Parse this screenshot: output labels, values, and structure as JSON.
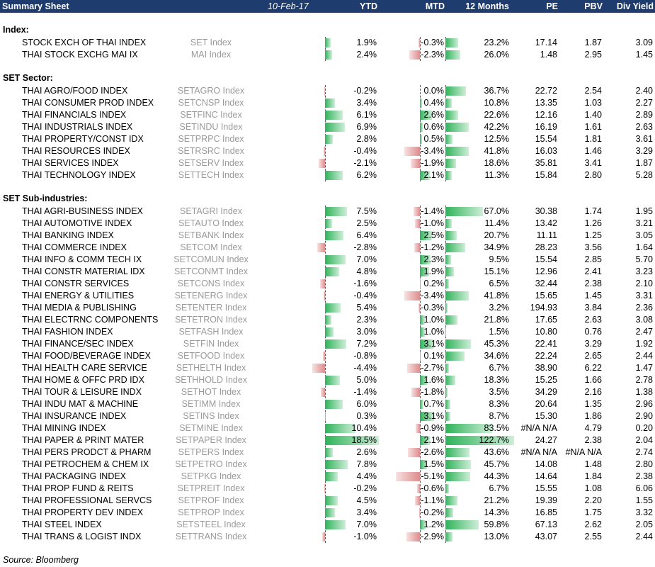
{
  "header": {
    "title": "Summary Sheet",
    "date": "10-Feb-17",
    "col_ytd": "YTD",
    "col_mtd": "MTD",
    "col_12m": "12 Months",
    "col_pe": "PE",
    "col_pbv": "PBV",
    "col_div": "Div Yield"
  },
  "sections": [
    {
      "title": "Index:",
      "rows": [
        {
          "name": "STOCK EXCH OF THAI INDEX",
          "ticker": "SET Index",
          "ytd": "1.9%",
          "mtd": "-0.3%",
          "m12": "23.2%",
          "pe": "17.14",
          "pbv": "1.87",
          "div": "3.09",
          "ytd_v": 1.9,
          "mtd_v": -0.3,
          "m12_v": 23.2
        },
        {
          "name": "THAI STOCK EXCHG MAI IX",
          "ticker": "MAI Index",
          "ytd": "2.4%",
          "mtd": "-2.3%",
          "m12": "26.0%",
          "pe": "1.48",
          "pbv": "2.95",
          "div": "1.45",
          "ytd_v": 2.4,
          "mtd_v": -2.3,
          "m12_v": 26.0
        }
      ]
    },
    {
      "title": "SET Sector:",
      "rows": [
        {
          "name": "THAI AGRO/FOOD INDEX",
          "ticker": "SETAGRO Index",
          "ytd": "-0.2%",
          "mtd": "0.0%",
          "m12": "36.7%",
          "pe": "22.72",
          "pbv": "2.54",
          "div": "2.40",
          "ytd_v": -0.2,
          "mtd_v": 0.0,
          "m12_v": 36.7
        },
        {
          "name": "THAI CONSUMER PROD INDEX",
          "ticker": "SETCNSP Index",
          "ytd": "3.4%",
          "mtd": "0.4%",
          "m12": "10.8%",
          "pe": "13.35",
          "pbv": "1.03",
          "div": "2.27",
          "ytd_v": 3.4,
          "mtd_v": 0.4,
          "m12_v": 10.8
        },
        {
          "name": "THAI FINANCIALS INDEX",
          "ticker": "SETFINC Index",
          "ytd": "6.1%",
          "mtd": "2.6%",
          "m12": "22.6%",
          "pe": "12.16",
          "pbv": "1.40",
          "div": "2.89",
          "ytd_v": 6.1,
          "mtd_v": 2.6,
          "m12_v": 22.6
        },
        {
          "name": "THAI INDUSTRIALS INDEX",
          "ticker": "SETINDU Index",
          "ytd": "6.9%",
          "mtd": "0.6%",
          "m12": "42.2%",
          "pe": "16.19",
          "pbv": "1.61",
          "div": "2.63",
          "ytd_v": 6.9,
          "mtd_v": 0.6,
          "m12_v": 42.2
        },
        {
          "name": "THAI PROPERTY/CONST IDX",
          "ticker": "SETPRPC Index",
          "ytd": "2.8%",
          "mtd": "0.5%",
          "m12": "12.5%",
          "pe": "15.54",
          "pbv": "1.81",
          "div": "3.61",
          "ytd_v": 2.8,
          "mtd_v": 0.5,
          "m12_v": 12.5
        },
        {
          "name": "THAI RESOURCES INDEX",
          "ticker": "SETRSRC Index",
          "ytd": "-0.4%",
          "mtd": "-3.4%",
          "m12": "41.8%",
          "pe": "16.03",
          "pbv": "1.46",
          "div": "3.29",
          "ytd_v": -0.4,
          "mtd_v": -3.4,
          "m12_v": 41.8
        },
        {
          "name": "THAI SERVICES INDEX",
          "ticker": "SETSERV Index",
          "ytd": "-2.1%",
          "mtd": "-1.9%",
          "m12": "18.6%",
          "pe": "35.81",
          "pbv": "3.41",
          "div": "1.87",
          "ytd_v": -2.1,
          "mtd_v": -1.9,
          "m12_v": 18.6
        },
        {
          "name": "THAI TECHNOLOGY INDEX",
          "ticker": "SETTECH Index",
          "ytd": "6.2%",
          "mtd": "2.1%",
          "m12": "11.3%",
          "pe": "15.84",
          "pbv": "2.80",
          "div": "5.28",
          "ytd_v": 6.2,
          "mtd_v": 2.1,
          "m12_v": 11.3
        }
      ]
    },
    {
      "title": "SET Sub-industries:",
      "rows": [
        {
          "name": "THAI AGRI-BUSINESS INDEX",
          "ticker": "SETAGRI Index",
          "ytd": "7.5%",
          "mtd": "-1.4%",
          "m12": "67.0%",
          "pe": "30.38",
          "pbv": "1.74",
          "div": "1.95",
          "ytd_v": 7.5,
          "mtd_v": -1.4,
          "m12_v": 67.0
        },
        {
          "name": "THAI AUTOMOTIVE INDEX",
          "ticker": "SETAUTO Index",
          "ytd": "2.5%",
          "mtd": "-1.0%",
          "m12": "11.4%",
          "pe": "13.42",
          "pbv": "1.26",
          "div": "3.21",
          "ytd_v": 2.5,
          "mtd_v": -1.0,
          "m12_v": 11.4
        },
        {
          "name": "THAI BANKING INDEX",
          "ticker": "SETBANK Index",
          "ytd": "6.4%",
          "mtd": "2.5%",
          "m12": "20.7%",
          "pe": "11.11",
          "pbv": "1.25",
          "div": "3.05",
          "ytd_v": 6.4,
          "mtd_v": 2.5,
          "m12_v": 20.7
        },
        {
          "name": "THAI COMMERCE INDEX",
          "ticker": "SETCOM Index",
          "ytd": "-2.8%",
          "mtd": "-1.2%",
          "m12": "34.9%",
          "pe": "28.23",
          "pbv": "3.56",
          "div": "1.64",
          "ytd_v": -2.8,
          "mtd_v": -1.2,
          "m12_v": 34.9
        },
        {
          "name": "THAI INFO & COMM TECH IX",
          "ticker": "SETCOMUN Index",
          "ytd": "7.0%",
          "mtd": "2.3%",
          "m12": "9.5%",
          "pe": "15.54",
          "pbv": "2.85",
          "div": "5.70",
          "ytd_v": 7.0,
          "mtd_v": 2.3,
          "m12_v": 9.5
        },
        {
          "name": "THAI CONSTR MATERIAL IDX",
          "ticker": "SETCONMT Index",
          "ytd": "4.8%",
          "mtd": "1.9%",
          "m12": "15.1%",
          "pe": "12.96",
          "pbv": "2.41",
          "div": "3.23",
          "ytd_v": 4.8,
          "mtd_v": 1.9,
          "m12_v": 15.1
        },
        {
          "name": "THAI CONSTR SERVICES",
          "ticker": "SETCONS Index",
          "ytd": "-1.6%",
          "mtd": "0.2%",
          "m12": "6.5%",
          "pe": "32.44",
          "pbv": "2.38",
          "div": "2.10",
          "ytd_v": -1.6,
          "mtd_v": 0.2,
          "m12_v": 6.5
        },
        {
          "name": "THAI ENERGY & UTILITIES",
          "ticker": "SETENERG Index",
          "ytd": "-0.4%",
          "mtd": "-3.4%",
          "m12": "41.8%",
          "pe": "15.65",
          "pbv": "1.45",
          "div": "3.31",
          "ytd_v": -0.4,
          "mtd_v": -3.4,
          "m12_v": 41.8
        },
        {
          "name": "THAI MEDIA & PUBLISHING",
          "ticker": "SETENTER Index",
          "ytd": "5.4%",
          "mtd": "-0.3%",
          "m12": "3.2%",
          "pe": "194.93",
          "pbv": "3.84",
          "div": "2.36",
          "ytd_v": 5.4,
          "mtd_v": -0.3,
          "m12_v": 3.2
        },
        {
          "name": "THAI ELECTRNC COMPONENTS",
          "ticker": "SETETRON Index",
          "ytd": "2.3%",
          "mtd": "1.0%",
          "m12": "21.8%",
          "pe": "17.65",
          "pbv": "2.63",
          "div": "3.08",
          "ytd_v": 2.3,
          "mtd_v": 1.0,
          "m12_v": 21.8
        },
        {
          "name": "THAI FASHION INDEX",
          "ticker": "SETFASH Index",
          "ytd": "3.0%",
          "mtd": "1.0%",
          "m12": "1.5%",
          "pe": "10.80",
          "pbv": "0.76",
          "div": "2.47",
          "ytd_v": 3.0,
          "mtd_v": 1.0,
          "m12_v": 1.5
        },
        {
          "name": "THAI FINANCE/SEC INDEX",
          "ticker": "SETFIN Index",
          "ytd": "7.2%",
          "mtd": "3.1%",
          "m12": "45.3%",
          "pe": "22.41",
          "pbv": "3.29",
          "div": "1.92",
          "ytd_v": 7.2,
          "mtd_v": 3.1,
          "m12_v": 45.3
        },
        {
          "name": "THAI FOOD/BEVERAGE INDEX",
          "ticker": "SETFOOD Index",
          "ytd": "-0.8%",
          "mtd": "0.1%",
          "m12": "34.6%",
          "pe": "22.24",
          "pbv": "2.65",
          "div": "2.44",
          "ytd_v": -0.8,
          "mtd_v": 0.1,
          "m12_v": 34.6
        },
        {
          "name": "THAI HEALTH CARE SERVICE",
          "ticker": "SETHELTH Index",
          "ytd": "-4.4%",
          "mtd": "-2.7%",
          "m12": "6.7%",
          "pe": "38.90",
          "pbv": "6.22",
          "div": "1.47",
          "ytd_v": -4.4,
          "mtd_v": -2.7,
          "m12_v": 6.7
        },
        {
          "name": "THAI HOME & OFFC PRD IDX",
          "ticker": "SETHHOLD Index",
          "ytd": "5.0%",
          "mtd": "1.6%",
          "m12": "18.3%",
          "pe": "15.25",
          "pbv": "1.66",
          "div": "2.78",
          "ytd_v": 5.0,
          "mtd_v": 1.6,
          "m12_v": 18.3
        },
        {
          "name": "THAI TOUR & LEISURE INDX",
          "ticker": "SETHOT Index",
          "ytd": "-1.4%",
          "mtd": "-1.8%",
          "m12": "3.5%",
          "pe": "34.29",
          "pbv": "2.16",
          "div": "1.38",
          "ytd_v": -1.4,
          "mtd_v": -1.8,
          "m12_v": 3.5
        },
        {
          "name": "THAI INDU MAT & MACHINE",
          "ticker": "SETIMM Index",
          "ytd": "6.0%",
          "mtd": "0.7%",
          "m12": "8.3%",
          "pe": "20.64",
          "pbv": "1.35",
          "div": "2.96",
          "ytd_v": 6.0,
          "mtd_v": 0.7,
          "m12_v": 8.3
        },
        {
          "name": "THAI INSURANCE INDEX",
          "ticker": "SETINS Index",
          "ytd": "0.3%",
          "mtd": "3.1%",
          "m12": "8.7%",
          "pe": "15.30",
          "pbv": "1.86",
          "div": "2.90",
          "ytd_v": 0.3,
          "mtd_v": 3.1,
          "m12_v": 8.7
        },
        {
          "name": "THAI MINING INDEX",
          "ticker": "SETMINE Index",
          "ytd": "10.4%",
          "mtd": "-0.9%",
          "m12": "83.5%",
          "pe": "#N/A N/A",
          "pbv": "4.79",
          "div": "0.20",
          "ytd_v": 10.4,
          "mtd_v": -0.9,
          "m12_v": 83.5
        },
        {
          "name": "THAI PAPER & PRINT MATER",
          "ticker": "SETPAPER Index",
          "ytd": "18.5%",
          "mtd": "2.1%",
          "m12": "122.7%",
          "pe": "24.27",
          "pbv": "2.38",
          "div": "2.04",
          "ytd_v": 18.5,
          "mtd_v": 2.1,
          "m12_v": 122.7
        },
        {
          "name": "THAI PERS PRODCT & PHARM",
          "ticker": "SETPERS Index",
          "ytd": "2.6%",
          "mtd": "-2.6%",
          "m12": "43.6%",
          "pe": "#N/A N/A",
          "pbv": "#N/A N/A",
          "div": "2.74",
          "ytd_v": 2.6,
          "mtd_v": -2.6,
          "m12_v": 43.6
        },
        {
          "name": "THAI PETROCHEM & CHEM IX",
          "ticker": "SETPETRO Index",
          "ytd": "7.8%",
          "mtd": "1.5%",
          "m12": "45.7%",
          "pe": "14.08",
          "pbv": "1.48",
          "div": "2.80",
          "ytd_v": 7.8,
          "mtd_v": 1.5,
          "m12_v": 45.7
        },
        {
          "name": "THAI PACKAGING INDEX",
          "ticker": "SETPKG Index",
          "ytd": "4.4%",
          "mtd": "-5.1%",
          "m12": "44.3%",
          "pe": "14.64",
          "pbv": "1.84",
          "div": "2.38",
          "ytd_v": 4.4,
          "mtd_v": -5.1,
          "m12_v": 44.3
        },
        {
          "name": "THAI PROP FUND & REITS",
          "ticker": "SETPREIT Index",
          "ytd": "-0.2%",
          "mtd": "-0.6%",
          "m12": "6.7%",
          "pe": "15.55",
          "pbv": "1.08",
          "div": "6.06",
          "ytd_v": -0.2,
          "mtd_v": -0.6,
          "m12_v": 6.7
        },
        {
          "name": "THAI PROFESSIONAL SERVCS",
          "ticker": "SETPROF Index",
          "ytd": "4.5%",
          "mtd": "-1.1%",
          "m12": "21.2%",
          "pe": "19.39",
          "pbv": "2.20",
          "div": "1.55",
          "ytd_v": 4.5,
          "mtd_v": -1.1,
          "m12_v": 21.2
        },
        {
          "name": "THAI PROPERTY DEV INDEX",
          "ticker": "SETPROP Index",
          "ytd": "3.4%",
          "mtd": "-0.2%",
          "m12": "14.3%",
          "pe": "16.85",
          "pbv": "1.75",
          "div": "3.32",
          "ytd_v": 3.4,
          "mtd_v": -0.2,
          "m12_v": 14.3
        },
        {
          "name": "THAI STEEL INDEX",
          "ticker": "SETSTEEL Index",
          "ytd": "7.0%",
          "mtd": "1.2%",
          "m12": "59.8%",
          "pe": "67.13",
          "pbv": "2.62",
          "div": "2.05",
          "ytd_v": 7.0,
          "mtd_v": 1.2,
          "m12_v": 59.8
        },
        {
          "name": "THAI TRANS & LOGIST INDX",
          "ticker": "SETTRANS Index",
          "ytd": "-1.0%",
          "mtd": "-2.9%",
          "m12": "13.0%",
          "pe": "43.07",
          "pbv": "2.55",
          "div": "2.44",
          "ytd_v": -1.0,
          "mtd_v": -2.9,
          "m12_v": 13.0
        }
      ]
    }
  ],
  "source": "Source: Bloomberg"
}
